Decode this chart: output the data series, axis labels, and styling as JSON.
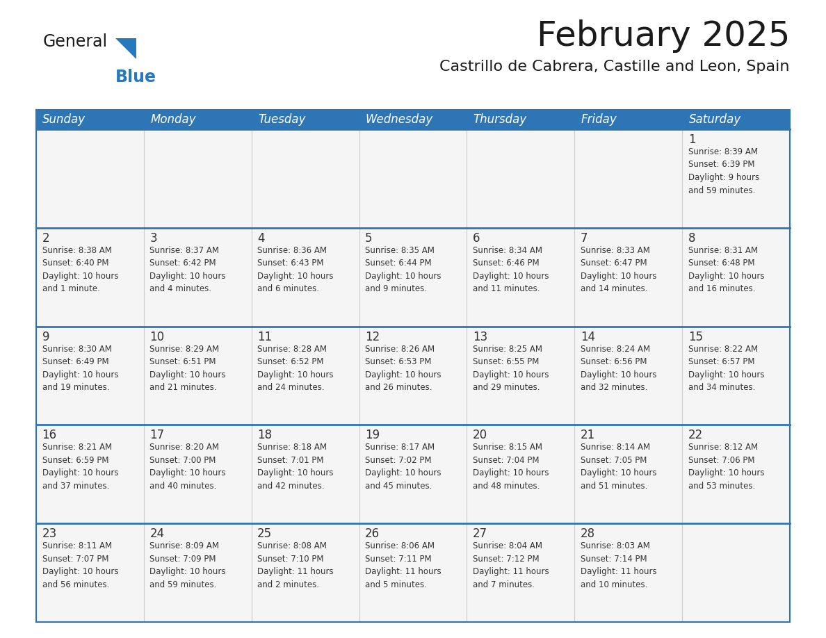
{
  "title": "February 2025",
  "subtitle": "Castrillo de Cabrera, Castille and Leon, Spain",
  "header_bg": "#2E75B6",
  "header_text": "#FFFFFF",
  "cell_bg": "#F5F5F5",
  "border_color": "#2E75B6",
  "text_color": "#333333",
  "day_headers": [
    "Sunday",
    "Monday",
    "Tuesday",
    "Wednesday",
    "Thursday",
    "Friday",
    "Saturday"
  ],
  "weeks": [
    [
      {
        "day": "",
        "info": ""
      },
      {
        "day": "",
        "info": ""
      },
      {
        "day": "",
        "info": ""
      },
      {
        "day": "",
        "info": ""
      },
      {
        "day": "",
        "info": ""
      },
      {
        "day": "",
        "info": ""
      },
      {
        "day": "1",
        "info": "Sunrise: 8:39 AM\nSunset: 6:39 PM\nDaylight: 9 hours\nand 59 minutes."
      }
    ],
    [
      {
        "day": "2",
        "info": "Sunrise: 8:38 AM\nSunset: 6:40 PM\nDaylight: 10 hours\nand 1 minute."
      },
      {
        "day": "3",
        "info": "Sunrise: 8:37 AM\nSunset: 6:42 PM\nDaylight: 10 hours\nand 4 minutes."
      },
      {
        "day": "4",
        "info": "Sunrise: 8:36 AM\nSunset: 6:43 PM\nDaylight: 10 hours\nand 6 minutes."
      },
      {
        "day": "5",
        "info": "Sunrise: 8:35 AM\nSunset: 6:44 PM\nDaylight: 10 hours\nand 9 minutes."
      },
      {
        "day": "6",
        "info": "Sunrise: 8:34 AM\nSunset: 6:46 PM\nDaylight: 10 hours\nand 11 minutes."
      },
      {
        "day": "7",
        "info": "Sunrise: 8:33 AM\nSunset: 6:47 PM\nDaylight: 10 hours\nand 14 minutes."
      },
      {
        "day": "8",
        "info": "Sunrise: 8:31 AM\nSunset: 6:48 PM\nDaylight: 10 hours\nand 16 minutes."
      }
    ],
    [
      {
        "day": "9",
        "info": "Sunrise: 8:30 AM\nSunset: 6:49 PM\nDaylight: 10 hours\nand 19 minutes."
      },
      {
        "day": "10",
        "info": "Sunrise: 8:29 AM\nSunset: 6:51 PM\nDaylight: 10 hours\nand 21 minutes."
      },
      {
        "day": "11",
        "info": "Sunrise: 8:28 AM\nSunset: 6:52 PM\nDaylight: 10 hours\nand 24 minutes."
      },
      {
        "day": "12",
        "info": "Sunrise: 8:26 AM\nSunset: 6:53 PM\nDaylight: 10 hours\nand 26 minutes."
      },
      {
        "day": "13",
        "info": "Sunrise: 8:25 AM\nSunset: 6:55 PM\nDaylight: 10 hours\nand 29 minutes."
      },
      {
        "day": "14",
        "info": "Sunrise: 8:24 AM\nSunset: 6:56 PM\nDaylight: 10 hours\nand 32 minutes."
      },
      {
        "day": "15",
        "info": "Sunrise: 8:22 AM\nSunset: 6:57 PM\nDaylight: 10 hours\nand 34 minutes."
      }
    ],
    [
      {
        "day": "16",
        "info": "Sunrise: 8:21 AM\nSunset: 6:59 PM\nDaylight: 10 hours\nand 37 minutes."
      },
      {
        "day": "17",
        "info": "Sunrise: 8:20 AM\nSunset: 7:00 PM\nDaylight: 10 hours\nand 40 minutes."
      },
      {
        "day": "18",
        "info": "Sunrise: 8:18 AM\nSunset: 7:01 PM\nDaylight: 10 hours\nand 42 minutes."
      },
      {
        "day": "19",
        "info": "Sunrise: 8:17 AM\nSunset: 7:02 PM\nDaylight: 10 hours\nand 45 minutes."
      },
      {
        "day": "20",
        "info": "Sunrise: 8:15 AM\nSunset: 7:04 PM\nDaylight: 10 hours\nand 48 minutes."
      },
      {
        "day": "21",
        "info": "Sunrise: 8:14 AM\nSunset: 7:05 PM\nDaylight: 10 hours\nand 51 minutes."
      },
      {
        "day": "22",
        "info": "Sunrise: 8:12 AM\nSunset: 7:06 PM\nDaylight: 10 hours\nand 53 minutes."
      }
    ],
    [
      {
        "day": "23",
        "info": "Sunrise: 8:11 AM\nSunset: 7:07 PM\nDaylight: 10 hours\nand 56 minutes."
      },
      {
        "day": "24",
        "info": "Sunrise: 8:09 AM\nSunset: 7:09 PM\nDaylight: 10 hours\nand 59 minutes."
      },
      {
        "day": "25",
        "info": "Sunrise: 8:08 AM\nSunset: 7:10 PM\nDaylight: 11 hours\nand 2 minutes."
      },
      {
        "day": "26",
        "info": "Sunrise: 8:06 AM\nSunset: 7:11 PM\nDaylight: 11 hours\nand 5 minutes."
      },
      {
        "day": "27",
        "info": "Sunrise: 8:04 AM\nSunset: 7:12 PM\nDaylight: 11 hours\nand 7 minutes."
      },
      {
        "day": "28",
        "info": "Sunrise: 8:03 AM\nSunset: 7:14 PM\nDaylight: 11 hours\nand 10 minutes."
      },
      {
        "day": "",
        "info": ""
      }
    ]
  ],
  "logo_text_general": "General",
  "logo_text_blue": "Blue",
  "logo_color_general": "#1a1a1a",
  "logo_color_blue": "#2779BD",
  "title_fontsize": 36,
  "subtitle_fontsize": 16,
  "header_fontsize": 12,
  "day_num_fontsize": 12,
  "cell_fontsize": 8.5
}
